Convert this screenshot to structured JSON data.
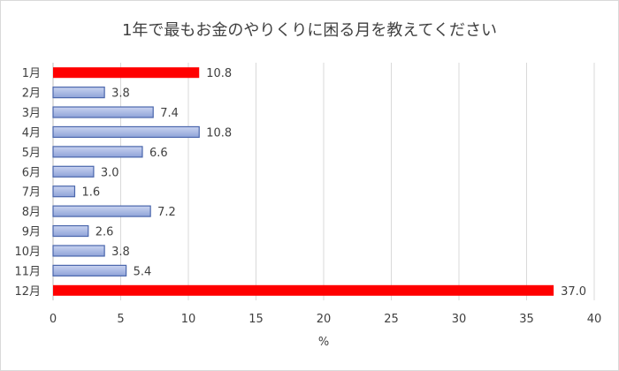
{
  "chart_data": {
    "type": "bar",
    "orientation": "horizontal",
    "title": "1年で最もお金のやりくりに困る月を教えてください",
    "categories": [
      "1月",
      "2月",
      "3月",
      "4月",
      "5月",
      "6月",
      "7月",
      "8月",
      "9月",
      "10月",
      "11月",
      "12月"
    ],
    "values": [
      10.8,
      3.8,
      7.4,
      10.8,
      6.6,
      3.0,
      1.6,
      7.2,
      2.6,
      3.8,
      5.4,
      37.0
    ],
    "data_labels": [
      "10.8",
      "3.8",
      "7.4",
      "10.8",
      "6.6",
      "3.0",
      "1.6",
      "7.2",
      "2.6",
      "3.8",
      "5.4",
      "37.0"
    ],
    "highlight": [
      true,
      false,
      false,
      false,
      false,
      false,
      false,
      false,
      false,
      false,
      false,
      true
    ],
    "xlabel": "%",
    "ylabel": "",
    "xlim": [
      0,
      40
    ],
    "xticks": [
      "0",
      "5",
      "10",
      "15",
      "20",
      "25",
      "30",
      "35",
      "40"
    ],
    "grid": true,
    "legend": "none",
    "colors": {
      "highlight": "#ff0000",
      "normal_fill_top": "#c9d3f0",
      "normal_fill_bottom": "#8fa3d8",
      "normal_stroke": "#4a66ac",
      "grid": "#d9d9d9",
      "axis": "#bfbfbf"
    }
  }
}
